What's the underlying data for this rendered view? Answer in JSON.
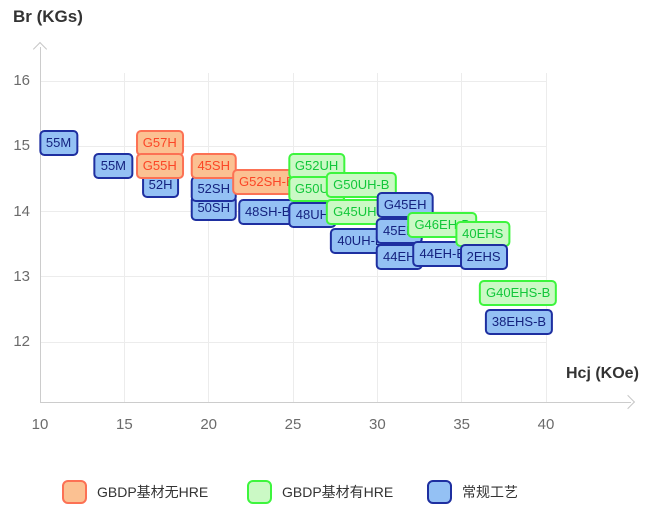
{
  "colors": {
    "orange": {
      "fill": "#fbc192",
      "border": "#fc7154",
      "text": "#fb4627"
    },
    "green": {
      "fill": "#cbf9c5",
      "border": "#3df53d",
      "text": "#12c73a"
    },
    "blue": {
      "fill": "#94c1f4",
      "border": "#1e2fa0",
      "text": "#15227f"
    },
    "grid_line": "#ececec",
    "axis_line": "#cccccc",
    "tick_text": "#6b6b6b",
    "title_text": "#333333"
  },
  "chart_data": {
    "type": "scatter",
    "title": "",
    "xlabel": "Hcj (KOe)",
    "ylabel": "Br (KGs)",
    "xlim": [
      10,
      40
    ],
    "ylim": [
      12,
      16
    ],
    "x_ticks": [
      10,
      15,
      20,
      25,
      30,
      35,
      40
    ],
    "y_ticks": [
      16,
      15,
      14,
      13,
      12
    ],
    "grid": true,
    "legend_position": "bottom",
    "series_legend": [
      {
        "key": "orange",
        "label": "GBDP基材无HRE"
      },
      {
        "key": "green",
        "label": "GBDP基材有HRE"
      },
      {
        "key": "blue",
        "label": "常规工艺"
      }
    ],
    "points": [
      {
        "label": "55M",
        "series": "blue",
        "x": 11.1,
        "y": 15.05
      },
      {
        "label": "55M",
        "series": "blue",
        "x": 14.35,
        "y": 14.7
      },
      {
        "label": "52H",
        "series": "blue",
        "x": 17.15,
        "y": 14.4
      },
      {
        "label": "G57H",
        "series": "orange",
        "x": 17.1,
        "y": 15.05
      },
      {
        "label": "G55H",
        "series": "orange",
        "x": 17.1,
        "y": 14.7
      },
      {
        "label": "50SH",
        "series": "blue",
        "x": 20.3,
        "y": 14.05
      },
      {
        "label": "52SH",
        "series": "blue",
        "x": 20.3,
        "y": 14.35
      },
      {
        "label": "45SH",
        "series": "orange",
        "x": 20.3,
        "y": 14.7
      },
      {
        "label": "48SH-B",
        "series": "blue",
        "x": 23.5,
        "y": 14.0
      },
      {
        "label": "G52SH-B",
        "series": "orange",
        "x": 23.45,
        "y": 14.45
      },
      {
        "label": "48UH",
        "series": "blue",
        "x": 26.15,
        "y": 13.95
      },
      {
        "label": "G52UH",
        "series": "green",
        "x": 26.4,
        "y": 14.7
      },
      {
        "label": "G50UH",
        "series": "green",
        "x": 26.4,
        "y": 14.35
      },
      {
        "label": "40UH-B",
        "series": "blue",
        "x": 29.0,
        "y": 13.55
      },
      {
        "label": "G45UH-B",
        "series": "green",
        "x": 29.05,
        "y": 14.0
      },
      {
        "label": "G50UH-B",
        "series": "green",
        "x": 29.05,
        "y": 14.4
      },
      {
        "label": "G45EH",
        "series": "blue",
        "x": 31.65,
        "y": 14.1
      },
      {
        "label": "45EH",
        "series": "blue",
        "x": 31.3,
        "y": 13.7
      },
      {
        "label": "44EH",
        "series": "blue",
        "x": 31.3,
        "y": 13.3
      },
      {
        "label": "44EH-B",
        "series": "blue",
        "x": 33.85,
        "y": 13.35
      },
      {
        "label": "G46EH-B",
        "series": "green",
        "x": 33.85,
        "y": 13.8
      },
      {
        "label": "40EHS",
        "series": "green",
        "x": 36.25,
        "y": 13.65
      },
      {
        "label": "2EHS",
        "series": "blue",
        "x": 36.3,
        "y": 13.3
      },
      {
        "label": "G40EHS-B",
        "series": "green",
        "x": 38.35,
        "y": 12.75
      },
      {
        "label": "38EHS-B",
        "series": "blue",
        "x": 38.4,
        "y": 12.3
      }
    ]
  }
}
